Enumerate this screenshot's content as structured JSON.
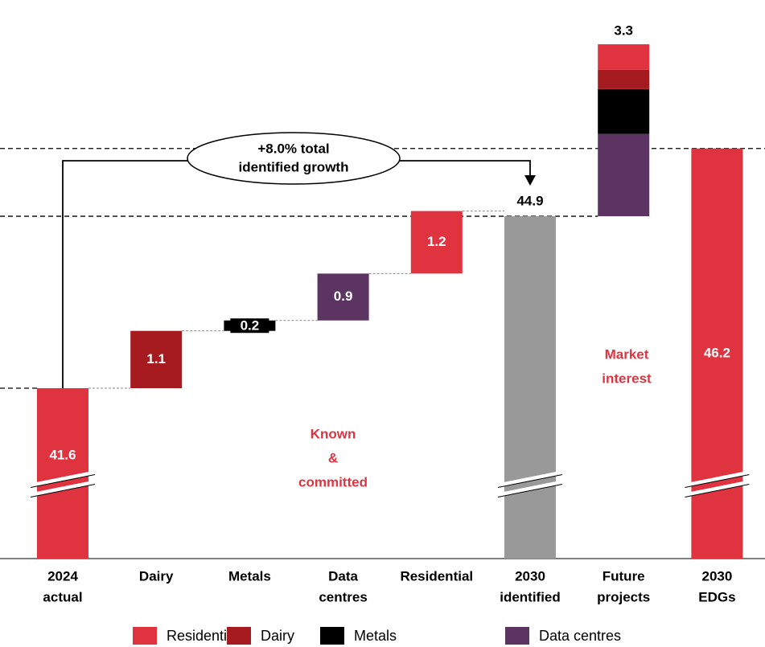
{
  "chart_data": {
    "type": "waterfall",
    "categories": [
      [
        "2024",
        "actual"
      ],
      [
        "Dairy"
      ],
      [
        "Metals"
      ],
      [
        "Data",
        "centres"
      ],
      [
        "Residential"
      ],
      [
        "2030",
        "identified"
      ],
      [
        "Future",
        "projects"
      ],
      [
        "2030",
        "EDGs"
      ]
    ],
    "values": [
      41.6,
      1.1,
      0.2,
      0.9,
      1.2,
      44.9,
      null,
      46.2
    ],
    "measures": [
      "absolute",
      "relative",
      "relative",
      "relative",
      "relative",
      "total",
      "stack",
      "absolute"
    ],
    "colors": [
      "#df3340",
      "#a61b1f",
      "#000000",
      "#5c3461",
      "#df3340",
      "#999999",
      null,
      "#df3340"
    ],
    "series": [
      {
        "name": "Residential",
        "color": "#df3340",
        "values": [
          null,
          null,
          null,
          null,
          null,
          null,
          0.49,
          null
        ]
      },
      {
        "name": "Dairy",
        "color": "#a61b1f",
        "values": [
          null,
          null,
          null,
          null,
          null,
          null,
          0.37,
          null
        ]
      },
      {
        "name": "Metals",
        "color": "#000000",
        "values": [
          null,
          null,
          null,
          null,
          null,
          null,
          0.86,
          null
        ]
      },
      {
        "name": "Data centres",
        "color": "#5c3461",
        "values": [
          null,
          null,
          null,
          null,
          null,
          null,
          1.58,
          null
        ]
      }
    ],
    "stack_total_label": 3.3,
    "ylim": [
      38.33,
      49.05
    ],
    "annotations": [
      {
        "text": [
          "+8.0% total",
          "identified growth"
        ]
      },
      {
        "text": [
          "Known",
          "&",
          "committed"
        ]
      },
      {
        "text": [
          "Market",
          "interest"
        ]
      }
    ]
  }
}
